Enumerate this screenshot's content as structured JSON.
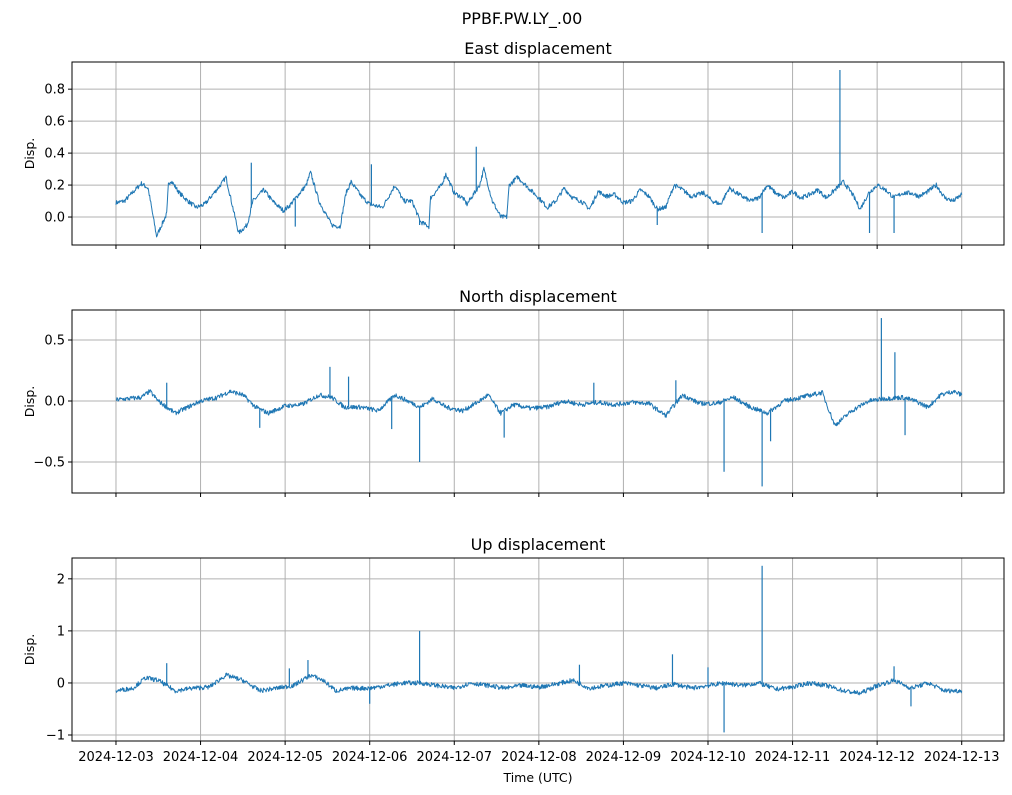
{
  "chart_data": {
    "type": "line",
    "suptitle": "PPBF.PW.LY_.00",
    "xlabel": "Time (UTC)",
    "x_unit": "days since 2024-12-03 00:00 UTC",
    "x_range": [
      -0.52,
      10.5
    ],
    "x_ticks": [
      0,
      1,
      2,
      3,
      4,
      5,
      6,
      7,
      8,
      9,
      10
    ],
    "x_tick_labels": [
      "2024-12-03",
      "2024-12-04",
      "2024-12-05",
      "2024-12-06",
      "2024-12-07",
      "2024-12-08",
      "2024-12-09",
      "2024-12-10",
      "2024-12-11",
      "2024-12-12",
      "2024-12-13"
    ],
    "grid": true,
    "line_color": "#1f77b4",
    "panels": [
      {
        "title": "East displacement",
        "ylabel": "Disp.",
        "ylim": [
          -0.175,
          0.97
        ],
        "y_ticks": [
          0.0,
          0.2,
          0.4,
          0.6,
          0.8
        ],
        "y_tick_labels": [
          "0.0",
          "0.2",
          "0.4",
          "0.6",
          "0.8"
        ],
        "points": [
          [
            0,
            0.09
          ],
          [
            0.1,
            0.1
          ],
          [
            0.3,
            0.21
          ],
          [
            0.38,
            0.18
          ],
          [
            0.48,
            -0.12
          ],
          [
            0.6,
            0.02
          ],
          [
            0.62,
            0.2
          ],
          [
            0.65,
            0.23
          ],
          [
            0.75,
            0.15
          ],
          [
            0.85,
            0.1
          ],
          [
            0.95,
            0.06
          ],
          [
            1.05,
            0.08
          ],
          [
            1.25,
            0.21
          ],
          [
            1.3,
            0.25
          ],
          [
            1.45,
            -0.1
          ],
          [
            1.55,
            -0.05
          ],
          [
            1.62,
            0.1
          ],
          [
            1.75,
            0.17
          ],
          [
            1.85,
            0.1
          ],
          [
            1.98,
            0.04
          ],
          [
            2.05,
            0.07
          ],
          [
            2.25,
            0.2
          ],
          [
            2.3,
            0.28
          ],
          [
            2.4,
            0.1
          ],
          [
            2.55,
            -0.05
          ],
          [
            2.65,
            -0.06
          ],
          [
            2.72,
            0.15
          ],
          [
            2.78,
            0.22
          ],
          [
            2.9,
            0.13
          ],
          [
            3.0,
            0.08
          ],
          [
            3.15,
            0.06
          ],
          [
            3.3,
            0.2
          ],
          [
            3.4,
            0.1
          ],
          [
            3.5,
            0.1
          ],
          [
            3.6,
            -0.03
          ],
          [
            3.7,
            -0.06
          ],
          [
            3.72,
            0.12
          ],
          [
            3.85,
            0.2
          ],
          [
            3.9,
            0.27
          ],
          [
            4.0,
            0.15
          ],
          [
            4.1,
            0.12
          ],
          [
            4.15,
            0.08
          ],
          [
            4.3,
            0.2
          ],
          [
            4.35,
            0.3
          ],
          [
            4.45,
            0.1
          ],
          [
            4.55,
            0.0
          ],
          [
            4.62,
            0.0
          ],
          [
            4.65,
            0.2
          ],
          [
            4.75,
            0.25
          ],
          [
            4.9,
            0.17
          ],
          [
            5.0,
            0.12
          ],
          [
            5.1,
            0.06
          ],
          [
            5.2,
            0.1
          ],
          [
            5.3,
            0.18
          ],
          [
            5.4,
            0.12
          ],
          [
            5.5,
            0.1
          ],
          [
            5.6,
            0.05
          ],
          [
            5.7,
            0.16
          ],
          [
            5.8,
            0.13
          ],
          [
            5.9,
            0.14
          ],
          [
            6.0,
            0.09
          ],
          [
            6.1,
            0.1
          ],
          [
            6.2,
            0.17
          ],
          [
            6.3,
            0.13
          ],
          [
            6.4,
            0.05
          ],
          [
            6.5,
            0.06
          ],
          [
            6.6,
            0.2
          ],
          [
            6.7,
            0.17
          ],
          [
            6.8,
            0.13
          ],
          [
            6.95,
            0.15
          ],
          [
            7.05,
            0.1
          ],
          [
            7.15,
            0.08
          ],
          [
            7.25,
            0.18
          ],
          [
            7.4,
            0.13
          ],
          [
            7.5,
            0.1
          ],
          [
            7.6,
            0.12
          ],
          [
            7.7,
            0.2
          ],
          [
            7.8,
            0.15
          ],
          [
            7.9,
            0.12
          ],
          [
            8.0,
            0.16
          ],
          [
            8.1,
            0.12
          ],
          [
            8.2,
            0.14
          ],
          [
            8.3,
            0.17
          ],
          [
            8.4,
            0.12
          ],
          [
            8.5,
            0.17
          ],
          [
            8.6,
            0.22
          ],
          [
            8.7,
            0.15
          ],
          [
            8.8,
            0.05
          ],
          [
            8.9,
            0.15
          ],
          [
            9.0,
            0.2
          ],
          [
            9.1,
            0.17
          ],
          [
            9.2,
            0.12
          ],
          [
            9.3,
            0.15
          ],
          [
            9.4,
            0.15
          ],
          [
            9.5,
            0.13
          ],
          [
            9.6,
            0.16
          ],
          [
            9.7,
            0.2
          ],
          [
            9.8,
            0.12
          ],
          [
            9.9,
            0.1
          ],
          [
            10.0,
            0.14
          ]
        ],
        "spikes": [
          [
            8.56,
            0.92
          ],
          [
            4.26,
            0.44
          ],
          [
            3.59,
            -0.05
          ],
          [
            1.6,
            0.34
          ],
          [
            7.64,
            -0.1
          ],
          [
            8.91,
            -0.1
          ],
          [
            9.2,
            -0.1
          ],
          [
            3.02,
            0.33
          ],
          [
            2.12,
            -0.06
          ],
          [
            6.4,
            -0.05
          ]
        ]
      },
      {
        "title": "North displacement",
        "ylabel": "Disp.",
        "ylim": [
          -0.754,
          0.746
        ],
        "y_ticks": [
          -0.5,
          0.0,
          0.5
        ],
        "y_tick_labels": [
          "−0.5",
          "0.0",
          "0.5"
        ],
        "points": [
          [
            0,
            0.01
          ],
          [
            0.3,
            0.03
          ],
          [
            0.4,
            0.08
          ],
          [
            0.5,
            0.0
          ],
          [
            0.6,
            -0.05
          ],
          [
            0.7,
            -0.1
          ],
          [
            0.85,
            -0.05
          ],
          [
            1.0,
            0.0
          ],
          [
            1.2,
            0.03
          ],
          [
            1.35,
            0.08
          ],
          [
            1.5,
            0.05
          ],
          [
            1.65,
            -0.05
          ],
          [
            1.8,
            -0.1
          ],
          [
            2.0,
            -0.04
          ],
          [
            2.2,
            -0.03
          ],
          [
            2.4,
            0.05
          ],
          [
            2.55,
            0.03
          ],
          [
            2.7,
            -0.05
          ],
          [
            2.9,
            -0.05
          ],
          [
            3.1,
            -0.08
          ],
          [
            3.3,
            0.05
          ],
          [
            3.45,
            0.0
          ],
          [
            3.6,
            -0.05
          ],
          [
            3.75,
            0.02
          ],
          [
            3.9,
            -0.05
          ],
          [
            4.1,
            -0.08
          ],
          [
            4.3,
            0.0
          ],
          [
            4.4,
            0.05
          ],
          [
            4.55,
            -0.1
          ],
          [
            4.7,
            -0.03
          ],
          [
            4.9,
            -0.06
          ],
          [
            5.1,
            -0.05
          ],
          [
            5.3,
            0.0
          ],
          [
            5.5,
            -0.03
          ],
          [
            5.7,
            -0.01
          ],
          [
            5.9,
            -0.03
          ],
          [
            6.1,
            -0.01
          ],
          [
            6.3,
            -0.02
          ],
          [
            6.5,
            -0.12
          ],
          [
            6.7,
            0.05
          ],
          [
            6.9,
            -0.02
          ],
          [
            7.1,
            -0.02
          ],
          [
            7.3,
            0.03
          ],
          [
            7.5,
            -0.05
          ],
          [
            7.7,
            -0.1
          ],
          [
            7.9,
            0.0
          ],
          [
            8.1,
            0.03
          ],
          [
            8.35,
            0.07
          ],
          [
            8.5,
            -0.2
          ],
          [
            8.7,
            -0.08
          ],
          [
            8.9,
            0.0
          ],
          [
            9.1,
            0.02
          ],
          [
            9.3,
            0.03
          ],
          [
            9.45,
            0.0
          ],
          [
            9.6,
            -0.05
          ],
          [
            9.75,
            0.05
          ],
          [
            9.9,
            0.08
          ],
          [
            10.0,
            0.05
          ]
        ],
        "spikes": [
          [
            3.59,
            -0.5
          ],
          [
            7.19,
            -0.58
          ],
          [
            7.64,
            -0.7
          ],
          [
            9.05,
            0.68
          ],
          [
            9.21,
            0.4
          ],
          [
            2.53,
            0.28
          ],
          [
            7.74,
            -0.33
          ],
          [
            9.33,
            -0.28
          ],
          [
            3.26,
            -0.23
          ],
          [
            1.7,
            -0.22
          ],
          [
            4.59,
            -0.3
          ],
          [
            0.6,
            0.15
          ],
          [
            2.75,
            0.2
          ],
          [
            6.62,
            0.17
          ],
          [
            5.65,
            0.15
          ]
        ]
      },
      {
        "title": "Up displacement",
        "ylabel": "Disp.",
        "ylim": [
          -1.115,
          2.4
        ],
        "y_ticks": [
          -1,
          0,
          1,
          2
        ],
        "y_tick_labels": [
          "−1",
          "0",
          "1",
          "2"
        ],
        "points": [
          [
            0,
            -0.15
          ],
          [
            0.2,
            -0.1
          ],
          [
            0.35,
            0.1
          ],
          [
            0.5,
            0.05
          ],
          [
            0.7,
            -0.15
          ],
          [
            0.9,
            -0.1
          ],
          [
            1.1,
            -0.08
          ],
          [
            1.3,
            0.15
          ],
          [
            1.5,
            0.05
          ],
          [
            1.7,
            -0.15
          ],
          [
            1.9,
            -0.1
          ],
          [
            2.1,
            -0.05
          ],
          [
            2.3,
            0.15
          ],
          [
            2.45,
            0.05
          ],
          [
            2.6,
            -0.15
          ],
          [
            2.8,
            -0.1
          ],
          [
            3.0,
            -0.1
          ],
          [
            3.2,
            -0.05
          ],
          [
            3.4,
            0.0
          ],
          [
            3.6,
            0.0
          ],
          [
            3.8,
            -0.05
          ],
          [
            4.0,
            -0.1
          ],
          [
            4.2,
            0.0
          ],
          [
            4.4,
            -0.05
          ],
          [
            4.6,
            -0.1
          ],
          [
            4.8,
            -0.05
          ],
          [
            5.0,
            -0.08
          ],
          [
            5.2,
            -0.02
          ],
          [
            5.4,
            0.05
          ],
          [
            5.6,
            -0.1
          ],
          [
            5.8,
            -0.05
          ],
          [
            6.0,
            0.0
          ],
          [
            6.2,
            -0.05
          ],
          [
            6.4,
            -0.1
          ],
          [
            6.6,
            -0.02
          ],
          [
            6.8,
            -0.1
          ],
          [
            7.0,
            -0.05
          ],
          [
            7.2,
            0.0
          ],
          [
            7.4,
            -0.05
          ],
          [
            7.6,
            0.0
          ],
          [
            7.8,
            -0.12
          ],
          [
            8.0,
            -0.08
          ],
          [
            8.2,
            0.0
          ],
          [
            8.4,
            -0.05
          ],
          [
            8.6,
            -0.15
          ],
          [
            8.8,
            -0.2
          ],
          [
            9.0,
            -0.05
          ],
          [
            9.2,
            0.05
          ],
          [
            9.4,
            -0.1
          ],
          [
            9.6,
            0.0
          ],
          [
            9.8,
            -0.15
          ],
          [
            10.0,
            -0.15
          ]
        ],
        "spikes": [
          [
            3.59,
            1.0
          ],
          [
            7.64,
            2.25
          ],
          [
            7.19,
            -0.95
          ],
          [
            0.6,
            0.38
          ],
          [
            2.27,
            0.44
          ],
          [
            6.58,
            0.55
          ],
          [
            5.48,
            0.35
          ],
          [
            7.0,
            0.3
          ],
          [
            9.2,
            0.32
          ],
          [
            9.4,
            -0.45
          ],
          [
            2.05,
            0.28
          ],
          [
            3.0,
            -0.4
          ]
        ]
      }
    ]
  }
}
